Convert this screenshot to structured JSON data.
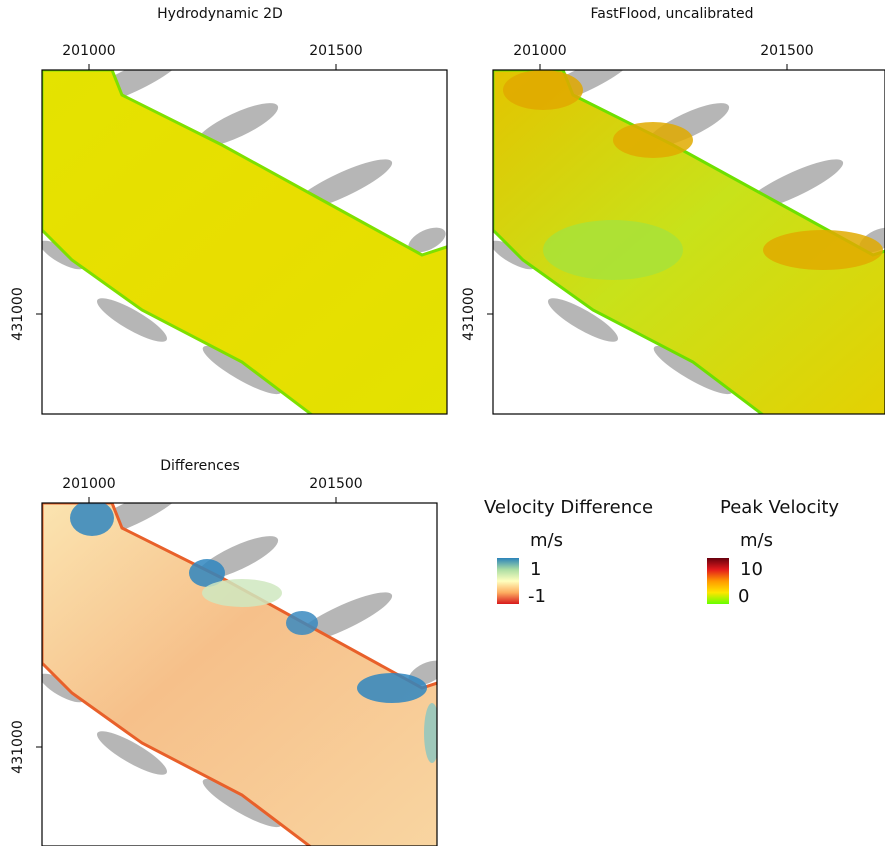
{
  "panels": [
    {
      "title": "Hydrodynamic 2D",
      "xticks": [
        201000,
        201500
      ],
      "yticks": [
        431000
      ]
    },
    {
      "title": "FastFlood, uncalibrated",
      "xticks": [
        201000,
        201500
      ],
      "yticks": [
        431000
      ]
    },
    {
      "title": "Differences",
      "xticks": [
        201000,
        201500
      ],
      "yticks": [
        431000
      ]
    }
  ],
  "legends": [
    {
      "title": "Velocity Difference",
      "unit": "m/s",
      "max": 1,
      "min": -1,
      "colors": [
        "#2b83ba",
        "#abdda4",
        "#ffffbf",
        "#fdae61",
        "#d7191c"
      ]
    },
    {
      "title": "Peak Velocity",
      "unit": "m/s",
      "max": 10,
      "min": 0,
      "colors": [
        "#67000d",
        "#e31a1c",
        "#ff9900",
        "#ffe600",
        "#66ff00"
      ]
    }
  ]
}
